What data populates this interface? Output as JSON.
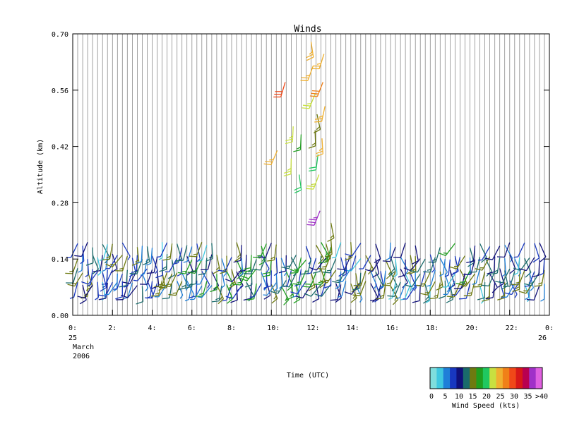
{
  "chart_data": {
    "type": "wind_barb_time_height",
    "title": "Winds",
    "xlabel": "Time (UTC)",
    "ylabel": "Altitude (km)",
    "ylim": [
      0.0,
      0.7
    ],
    "xlim_hours": [
      0,
      24
    ],
    "y_ticks": [
      "0.00",
      "0.14",
      "0.28",
      "0.42",
      "0.56",
      "0.70"
    ],
    "y_tick_values": [
      0.0,
      0.14,
      0.28,
      0.42,
      0.56,
      0.7
    ],
    "x_ticks": [
      {
        "hour": 0,
        "label": "0:"
      },
      {
        "hour": 2,
        "label": "2:"
      },
      {
        "hour": 4,
        "label": "4:"
      },
      {
        "hour": 6,
        "label": "6:"
      },
      {
        "hour": 8,
        "label": "8:"
      },
      {
        "hour": 10,
        "label": "10:"
      },
      {
        "hour": 12,
        "label": "12:"
      },
      {
        "hour": 14,
        "label": "14:"
      },
      {
        "hour": 16,
        "label": "16:"
      },
      {
        "hour": 18,
        "label": "18:"
      },
      {
        "hour": 20,
        "label": "20:"
      },
      {
        "hour": 22,
        "label": "22:"
      },
      {
        "hour": 24,
        "label": "0:"
      }
    ],
    "date_start": {
      "day": "25",
      "month": "March",
      "year": "2006"
    },
    "date_end": {
      "day": "26"
    },
    "profile_interval_hours": 0.25,
    "grid": "vertical lines at each profile time",
    "colorbar": {
      "label": "Wind Speed (kts)",
      "tick_labels": [
        "0",
        "5",
        "10",
        "15",
        "20",
        "25",
        "30",
        "35",
        ">40"
      ],
      "colors": [
        "#7fdedd",
        "#3fc8e0",
        "#1f7fd8",
        "#1838c0",
        "#10107a",
        "#1a6b6b",
        "#6e7a10",
        "#1f9f1f",
        "#20c860",
        "#c8e040",
        "#f0b030",
        "#f08018",
        "#f04818",
        "#d81818",
        "#b80050",
        "#a030c8",
        "#e060e0"
      ]
    },
    "dominant_speeds_kts": {
      "low_level_0.05_to_0.20_km": "5-20",
      "upper_cluster_10h_13h_0.35_to_0.70_km": "25-35"
    }
  }
}
